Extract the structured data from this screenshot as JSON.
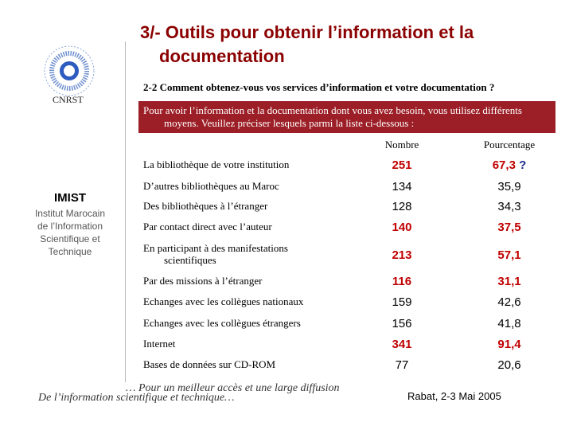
{
  "slide": {
    "title_line1": "3/- Outils pour obtenir l’information et la",
    "title_line2": "documentation",
    "subtitle": "2-2  Comment obtenez-vous vos services d’information et votre documentation ?",
    "intro_line1": "Pour avoir l’information et la documentation dont vous avez besoin, vous utilisez différents",
    "intro_line2": "moyens. Veuillez préciser lesquels parmi la liste ci-dessous :"
  },
  "branding": {
    "cnrst": "CNRST",
    "imist": "IMIST",
    "imist_full_1": "Institut Marocain",
    "imist_full_2": "de l’Information",
    "imist_full_3": "Scientifique et",
    "imist_full_4": "Technique"
  },
  "table": {
    "header_count": "Nombre",
    "header_percent": "Pourcentage",
    "rows": [
      {
        "label": "La bibliothèque de votre institution",
        "label_cont": "",
        "count": "251",
        "percent": "67,3",
        "mark": "?"
      },
      {
        "label": "D’autres bibliothèques au Maroc",
        "label_cont": "",
        "count": "134",
        "percent": "35,9",
        "mark": ""
      },
      {
        "label": "Des  bibliothèques à l’étranger",
        "label_cont": "",
        "count": "128",
        "percent": "34,3",
        "mark": ""
      },
      {
        "label": "Par contact direct avec l’auteur",
        "label_cont": "",
        "count": "140",
        "percent": "37,5",
        "mark": ""
      },
      {
        "label": "En participant à des manifestations",
        "label_cont": "scientifiques",
        "count": "213",
        "percent": "57,1",
        "mark": ""
      },
      {
        "label": "Par des missions à l’étranger",
        "label_cont": "",
        "count": "116",
        "percent": "31,1",
        "mark": ""
      },
      {
        "label": "Echanges avec les collègues nationaux",
        "label_cont": "",
        "count": "159",
        "percent": "42,6",
        "mark": ""
      },
      {
        "label": "Echanges avec les collègues étrangers",
        "label_cont": "",
        "count": "156",
        "percent": "41,8",
        "mark": ""
      },
      {
        "label": "Internet",
        "label_cont": "",
        "count": "341",
        "percent": "91,4",
        "mark": ""
      },
      {
        "label": "Bases de données sur CD-ROM",
        "label_cont": "",
        "count": "77",
        "percent": "20,6",
        "mark": ""
      }
    ]
  },
  "footer": {
    "tagline_1": "… Pour un meilleur accès et une large diffusion",
    "tagline_2": "De l’information scientifique et technique…",
    "event": "Rabat, 2-3 Mai 2005"
  },
  "colors": {
    "title": "#8b0000",
    "intro_bg": "#9c1f27",
    "highlight": "#c00000",
    "question_mark": "#1c2f8c"
  }
}
